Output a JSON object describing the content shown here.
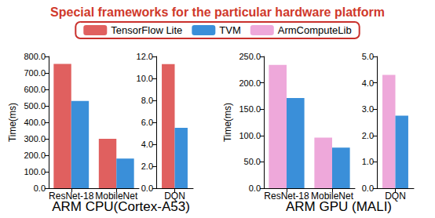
{
  "title": "Special frameworks for the particular hardware platform",
  "group_labels": [
    "ARM CPU(Cortex-A53)",
    "ARM GPU (MALI)"
  ],
  "chart_data": [
    {
      "type": "bar",
      "categories": [
        "ResNet-18",
        "MobileNet"
      ],
      "series": [
        {
          "name": "TensorFlow Lite",
          "color": "#e0605f",
          "values": [
            755,
            300
          ]
        },
        {
          "name": "TVM",
          "color": "#3a8fd9",
          "values": [
            530,
            180
          ]
        }
      ],
      "ylabel": "Time(ms)",
      "ylim": [
        0,
        800
      ],
      "yticks": [
        {
          "value": 0,
          "label": "0.0"
        },
        {
          "value": 100,
          "label": "100.0"
        },
        {
          "value": 200,
          "label": "200.0"
        },
        {
          "value": 300,
          "label": "300.0"
        },
        {
          "value": 400,
          "label": "400.0"
        },
        {
          "value": 500,
          "label": "500.0"
        },
        {
          "value": 600,
          "label": "600.0"
        },
        {
          "value": 700,
          "label": "700.0"
        },
        {
          "value": 800,
          "label": "800.0"
        }
      ]
    },
    {
      "type": "bar",
      "categories": [
        "DQN"
      ],
      "series": [
        {
          "name": "TensorFlow Lite",
          "color": "#e0605f",
          "values": [
            11.3
          ]
        },
        {
          "name": "TVM",
          "color": "#3a8fd9",
          "values": [
            5.5
          ]
        }
      ],
      "ylim": [
        0,
        12
      ],
      "yticks": [
        {
          "value": 0,
          "label": "0.0"
        },
        {
          "value": 2,
          "label": "2.0"
        },
        {
          "value": 4,
          "label": "4.0"
        },
        {
          "value": 6,
          "label": "6.0"
        },
        {
          "value": 8,
          "label": "8.0"
        },
        {
          "value": 10,
          "label": "10.0"
        },
        {
          "value": 12,
          "label": "12.0"
        }
      ]
    },
    {
      "type": "bar",
      "categories": [
        "ResNet-18",
        "MobileNet"
      ],
      "series": [
        {
          "name": "ArmComputeLib",
          "color": "#eea8da",
          "values": [
            234,
            96
          ]
        },
        {
          "name": "TVM",
          "color": "#3a8fd9",
          "values": [
            171,
            77
          ]
        }
      ],
      "ylabel": "Time(ms)",
      "ylim": [
        0,
        250
      ],
      "yticks": [
        {
          "value": 0,
          "label": "0.0"
        },
        {
          "value": 50,
          "label": "50.0"
        },
        {
          "value": 100,
          "label": "100.0"
        },
        {
          "value": 150,
          "label": "150.0"
        },
        {
          "value": 200,
          "label": "200.0"
        },
        {
          "value": 250,
          "label": "250.0"
        }
      ]
    },
    {
      "type": "bar",
      "categories": [
        "DQN"
      ],
      "series": [
        {
          "name": "ArmComputeLib",
          "color": "#eea8da",
          "values": [
            4.3
          ]
        },
        {
          "name": "TVM",
          "color": "#3a8fd9",
          "values": [
            2.75
          ]
        }
      ],
      "ylim": [
        0,
        5
      ],
      "yticks": [
        {
          "value": 0,
          "label": "0.0"
        },
        {
          "value": 1,
          "label": "1.0"
        },
        {
          "value": 2,
          "label": "2.0"
        },
        {
          "value": 3,
          "label": "3.0"
        },
        {
          "value": 4,
          "label": "4.0"
        },
        {
          "value": 5,
          "label": "5.0"
        }
      ]
    }
  ]
}
